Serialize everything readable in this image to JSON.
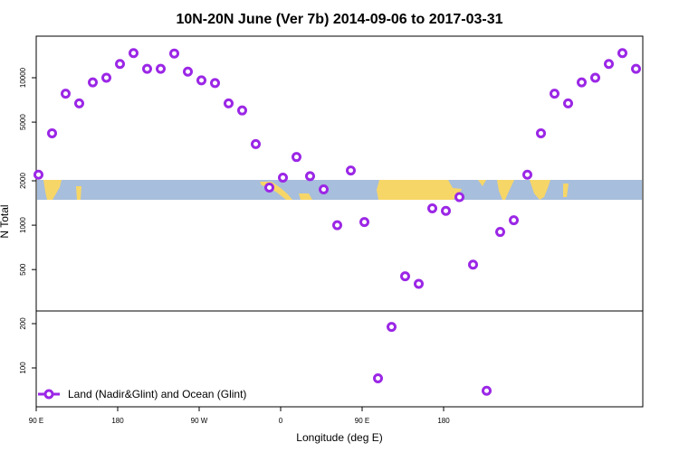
{
  "chart_data": {
    "type": "scatter",
    "title": "10N-20N June (Ver 7b)   2014-09-06 to 2017-03-31",
    "xlabel": "Longitude (deg E)",
    "ylabel": "N Total",
    "y_scale": "log",
    "x_ticks": [
      "90 E",
      "180",
      "90 W",
      "0",
      "90 E",
      "180"
    ],
    "y_ticks_upper": [
      "500",
      "1000",
      "2000",
      "5000",
      "10000"
    ],
    "y_ticks_lower": [
      "100",
      "200"
    ],
    "grid": false,
    "legend_position": "bottom-left",
    "series": [
      {
        "name": "Land (Nadir&Glint) and Ocean (Glint)",
        "color": "#9b27e6",
        "marker": "open-circle",
        "x": [
          92.5,
          107.5,
          122.5,
          137.5,
          152.5,
          167.5,
          182.5,
          197.5,
          212.5,
          227.5,
          242.5,
          257.5,
          272.5,
          287.5,
          302.5,
          317.5,
          332.5,
          347.5,
          362.5,
          377.5,
          392.5,
          407.5,
          422.5,
          437.5,
          452.5,
          467.5,
          482.5,
          497.5,
          512.5,
          527.5,
          542.5,
          557.5,
          572.5,
          587.5,
          602.5,
          617.5,
          632.5,
          647.5,
          662.5,
          677.5,
          692.5,
          707.5,
          722.5,
          737.5,
          752.5
        ],
        "y": [
          2200,
          4200,
          7800,
          6700,
          9300,
          10000,
          12400,
          14700,
          11500,
          11500,
          14600,
          11000,
          9600,
          9200,
          6700,
          6000,
          3550,
          1800,
          2100,
          2900,
          2150,
          1750,
          1000,
          2350,
          1050,
          85,
          190,
          450,
          400,
          1300,
          1250,
          1550,
          540,
          70,
          900,
          1080,
          2200,
          4200,
          7800,
          6700,
          9300,
          10000,
          12400,
          14700,
          11500
        ]
      }
    ]
  }
}
